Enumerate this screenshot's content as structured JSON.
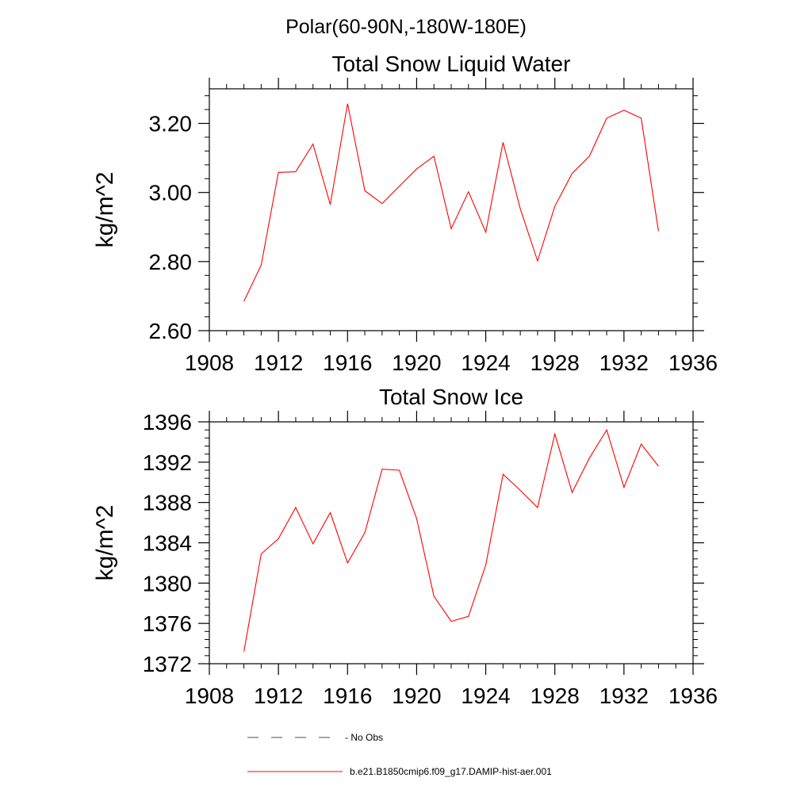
{
  "figure": {
    "suptitle": "Polar(60-90N,-180W-180E)",
    "line_color": "#ff0000",
    "obs_color": "#4a4a6a"
  },
  "chart_data": [
    {
      "type": "line",
      "title": "Total Snow Liquid Water",
      "xlabel": "",
      "ylabel": "kg/m^2",
      "xlim": [
        1908,
        1936
      ],
      "ylim": [
        2.6,
        3.3
      ],
      "x_ticks": [
        "1908",
        "1912",
        "1916",
        "1920",
        "1924",
        "1928",
        "1932",
        "1936"
      ],
      "y_ticks": [
        {
          "value": 2.6,
          "label": "2.60"
        },
        {
          "value": 2.8,
          "label": "2.80"
        },
        {
          "value": 3.0,
          "label": "3.00"
        },
        {
          "value": 3.2,
          "label": "3.20"
        }
      ],
      "grid": false,
      "series": [
        {
          "name": "b.e21.B1850cmip6.f09_g17.DAMIP-hist-aer.001",
          "x": [
            1910,
            1911,
            1912,
            1913,
            1914,
            1915,
            1916,
            1917,
            1918,
            1919,
            1920,
            1921,
            1922,
            1923,
            1924,
            1925,
            1926,
            1927,
            1928,
            1929,
            1930,
            1931,
            1932,
            1933,
            1934
          ],
          "y": [
            2.685,
            2.79,
            3.058,
            3.06,
            3.14,
            2.965,
            3.257,
            3.005,
            2.968,
            3.018,
            3.068,
            3.105,
            2.895,
            3.002,
            2.885,
            3.145,
            2.953,
            2.802,
            2.96,
            3.055,
            3.105,
            3.215,
            3.238,
            3.215,
            2.888
          ]
        }
      ]
    },
    {
      "type": "line",
      "title": "Total Snow Ice",
      "xlabel": "",
      "ylabel": "kg/m^2",
      "xlim": [
        1908,
        1936
      ],
      "ylim": [
        1372,
        1396
      ],
      "x_ticks": [
        "1908",
        "1912",
        "1916",
        "1920",
        "1924",
        "1928",
        "1932",
        "1936"
      ],
      "y_ticks": [
        {
          "value": 1372,
          "label": "1372"
        },
        {
          "value": 1376,
          "label": "1376"
        },
        {
          "value": 1380,
          "label": "1380"
        },
        {
          "value": 1384,
          "label": "1384"
        },
        {
          "value": 1388,
          "label": "1388"
        },
        {
          "value": 1392,
          "label": "1392"
        },
        {
          "value": 1396,
          "label": "1396"
        }
      ],
      "grid": false,
      "series": [
        {
          "name": "b.e21.B1850cmip6.f09_g17.DAMIP-hist-aer.001",
          "x": [
            1910,
            1911,
            1912,
            1913,
            1914,
            1915,
            1916,
            1917,
            1918,
            1919,
            1920,
            1921,
            1922,
            1923,
            1924,
            1925,
            1926,
            1927,
            1928,
            1929,
            1930,
            1931,
            1932,
            1933,
            1934
          ],
          "y": [
            1373.2,
            1382.9,
            1384.4,
            1387.5,
            1383.9,
            1387.0,
            1382.0,
            1385.0,
            1391.3,
            1391.2,
            1386.4,
            1378.7,
            1376.2,
            1376.7,
            1381.8,
            1390.8,
            1389.2,
            1387.5,
            1394.8,
            1389.0,
            1392.4,
            1395.2,
            1389.5,
            1393.8,
            1391.6
          ]
        }
      ]
    }
  ],
  "legend": {
    "placement": "bottom",
    "entries": [
      {
        "label": "- No Obs",
        "style": "dashed"
      },
      {
        "label": "b.e21.B1850cmip6.f09_g17.DAMIP-hist-aer.001",
        "style": "solid"
      }
    ]
  }
}
